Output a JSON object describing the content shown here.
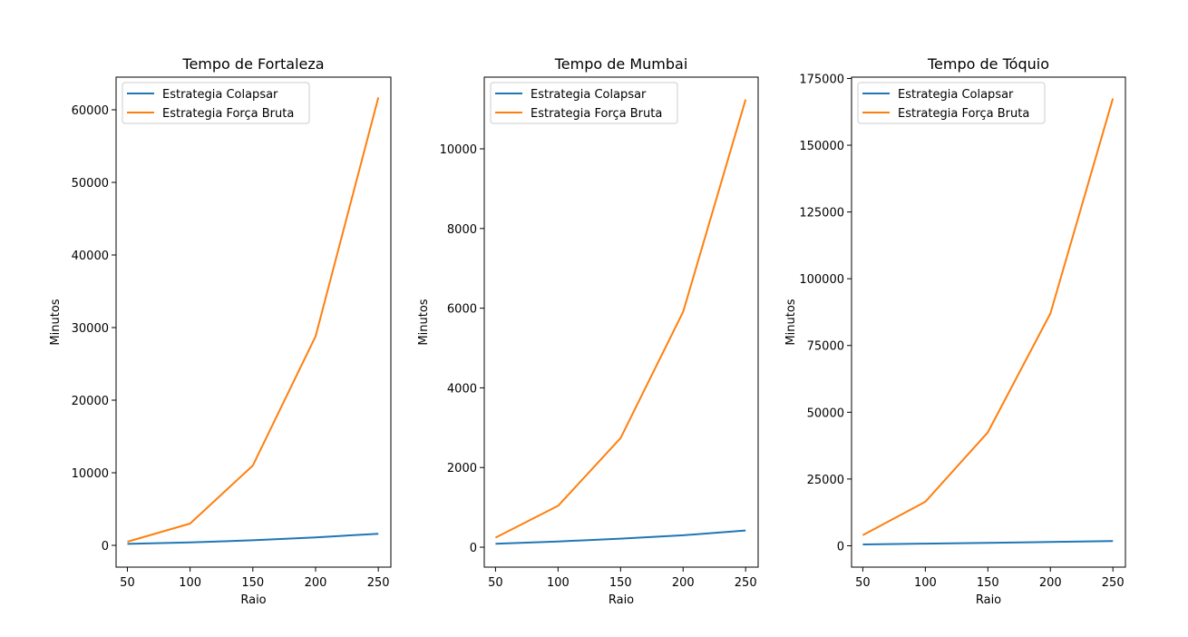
{
  "chart_data": [
    {
      "type": "line",
      "title": "Tempo de Fortaleza",
      "xlabel": "Raio",
      "ylabel": "Minutos",
      "x": [
        50,
        100,
        150,
        200,
        250
      ],
      "xticks": [
        50,
        100,
        150,
        200,
        250
      ],
      "xlim": [
        41,
        260
      ],
      "ylim": [
        -3000,
        64500
      ],
      "yticks": [
        0,
        10000,
        20000,
        30000,
        40000,
        50000,
        60000
      ],
      "legend_position": "upper-left",
      "grid": false,
      "series": [
        {
          "name": "Estrategia Colapsar",
          "color": "#1f77b4",
          "values": [
            200,
            400,
            700,
            1100,
            1600
          ]
        },
        {
          "name": "Estrategia Força Bruta",
          "color": "#ff7f0e",
          "values": [
            500,
            3000,
            11000,
            28800,
            61700
          ]
        }
      ]
    },
    {
      "type": "line",
      "title": "Tempo de Mumbai",
      "xlabel": "Raio",
      "ylabel": "Minutos",
      "x": [
        50,
        100,
        150,
        200,
        250
      ],
      "xticks": [
        50,
        100,
        150,
        200,
        250
      ],
      "xlim": [
        41,
        260
      ],
      "ylim": [
        -500,
        11800
      ],
      "yticks": [
        0,
        2000,
        4000,
        6000,
        8000,
        10000
      ],
      "legend_position": "upper-left",
      "grid": false,
      "series": [
        {
          "name": "Estrategia Colapsar",
          "color": "#1f77b4",
          "values": [
            85,
            145,
            215,
            300,
            420
          ]
        },
        {
          "name": "Estrategia Força Bruta",
          "color": "#ff7f0e",
          "values": [
            240,
            1040,
            2740,
            5910,
            11240
          ]
        }
      ]
    },
    {
      "type": "line",
      "title": "Tempo de Tóquio",
      "xlabel": "Raio",
      "ylabel": "Minutos",
      "x": [
        50,
        100,
        150,
        200,
        250
      ],
      "xticks": [
        50,
        100,
        150,
        200,
        250
      ],
      "xlim": [
        41,
        260
      ],
      "ylim": [
        -8000,
        175500
      ],
      "yticks": [
        0,
        25000,
        50000,
        75000,
        100000,
        125000,
        150000,
        175000
      ],
      "legend_position": "upper-left",
      "grid": false,
      "series": [
        {
          "name": "Estrategia Colapsar",
          "color": "#1f77b4",
          "values": [
            500,
            800,
            1100,
            1400,
            1800
          ]
        },
        {
          "name": "Estrategia Força Bruta",
          "color": "#ff7f0e",
          "values": [
            4000,
            16500,
            42500,
            87000,
            167500
          ]
        }
      ]
    }
  ]
}
